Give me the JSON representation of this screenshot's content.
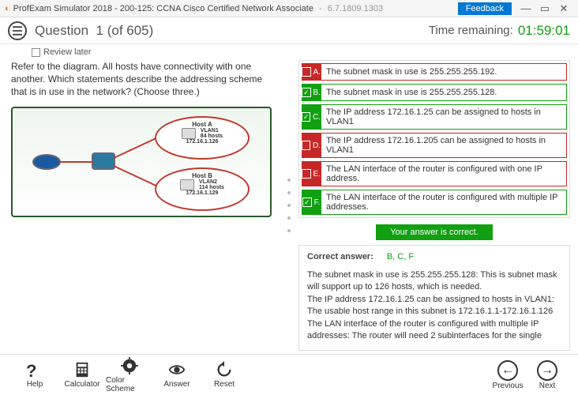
{
  "titlebar": {
    "app": "ProfExam Simulator 2018",
    "exam": "200-125: CCNA Cisco Certified Network Associate",
    "version": "6.7.1809.1303",
    "feedback": "Feedback"
  },
  "header": {
    "question_label": "Question",
    "question_num": "1",
    "question_total": "(of 605)",
    "time_label": "Time remaining:",
    "time_value": "01:59:01"
  },
  "review_later": "Review later",
  "question_text": "Refer to the diagram. All hosts have connectivity with one another. Which statements describe the addressing scheme that is in use in the network? (Choose three.)",
  "diagram": {
    "hostA": {
      "name": "Host A",
      "vlan": "VLAN1",
      "hosts": "84 hosts",
      "ip": "172.16.1.126"
    },
    "hostB": {
      "name": "Host B",
      "vlan": "VLAN2",
      "hosts": "114 hosts",
      "ip": "172.16.1.129"
    }
  },
  "options": [
    {
      "letter": "A.",
      "state": "red",
      "checked": false,
      "text": "The subnet mask in use is 255.255.255.192."
    },
    {
      "letter": "B.",
      "state": "green",
      "checked": true,
      "text": "The subnet mask in use is 255.255.255.128."
    },
    {
      "letter": "C.",
      "state": "green",
      "checked": true,
      "text": "The IP address 172.16.1.25 can be assigned to hosts in VLAN1"
    },
    {
      "letter": "D.",
      "state": "red",
      "checked": false,
      "text": "The IP address 172.16.1.205 can be assigned to hosts in VLAN1"
    },
    {
      "letter": "E.",
      "state": "red",
      "checked": false,
      "text": "The LAN interface of the router is configured with one IP address."
    },
    {
      "letter": "F.",
      "state": "green",
      "checked": true,
      "text": "The LAN interface of the router is configured with multiple IP addresses."
    }
  ],
  "correct_banner": "Your answer is correct.",
  "correct_answer_label": "Correct answer:",
  "correct_answer_value": "B, C, F",
  "explanation": "The subnet mask in use is 255.255.255.128: This is subnet mask will support up to 126 hosts, which is needed.\nThe IP address 172.16.1.25 can be assigned to hosts in VLAN1: The usable host range in this subnet is 172.16.1.1-172.16.1.126\nThe LAN interface of the router is configured with multiple IP addresses: The router will need 2 subinterfaces for the single",
  "footer": {
    "help": "Help",
    "calculator": "Calculator",
    "colorscheme": "Color Scheme",
    "answer": "Answer",
    "reset": "Reset",
    "previous": "Previous",
    "next": "Next"
  }
}
